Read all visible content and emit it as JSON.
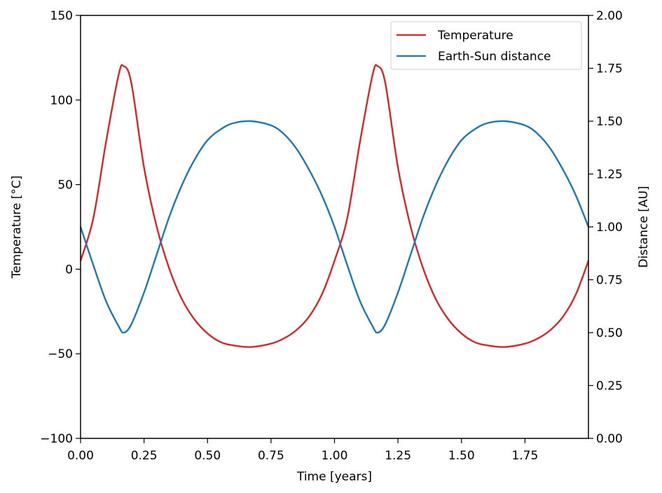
{
  "chart_data": {
    "type": "line",
    "title": "",
    "xlabel": "Time [years]",
    "ylabel_left": "Temperature [°C]",
    "ylabel_right": "Distance [AU]",
    "xlim": [
      0,
      2
    ],
    "ylim_left": [
      -100,
      150
    ],
    "ylim_right": [
      0,
      2
    ],
    "grid": false,
    "legend_position": "top-right",
    "x_ticks": [
      "0.00",
      "0.25",
      "0.50",
      "0.75",
      "1.00",
      "1.25",
      "1.50",
      "1.75"
    ],
    "y_left_ticks": [
      "−100",
      "−50",
      "0",
      "50",
      "100",
      "150"
    ],
    "y_right_ticks": [
      "0.00",
      "0.25",
      "0.50",
      "0.75",
      "1.00",
      "1.25",
      "1.50",
      "1.75",
      "2.00"
    ],
    "x": [
      0.0,
      0.05,
      0.1,
      0.15,
      0.17,
      0.2,
      0.25,
      0.3,
      0.35,
      0.4,
      0.45,
      0.5,
      0.55,
      0.6,
      0.67,
      0.75,
      0.8,
      0.85,
      0.9,
      0.95,
      1.0,
      1.05,
      1.1,
      1.15,
      1.17,
      1.2,
      1.25,
      1.3,
      1.35,
      1.4,
      1.45,
      1.5,
      1.55,
      1.6,
      1.67,
      1.75,
      1.8,
      1.85,
      1.9,
      1.95,
      2.0
    ],
    "series": [
      {
        "name": "Temperature",
        "axis": "left",
        "color": "#d62728",
        "values": [
          5,
          30,
          75,
          115,
          120,
          110,
          60,
          25,
          0,
          -18,
          -30,
          -38,
          -43,
          -45,
          -46,
          -44,
          -41,
          -36,
          -28,
          -15,
          5,
          30,
          75,
          115,
          120,
          110,
          60,
          25,
          0,
          -18,
          -30,
          -38,
          -43,
          -45,
          -46,
          -44,
          -41,
          -36,
          -28,
          -15,
          5
        ]
      },
      {
        "name": "Earth-Sun distance",
        "axis": "right",
        "color": "#1f77b4",
        "values": [
          1.0,
          0.82,
          0.65,
          0.53,
          0.5,
          0.54,
          0.69,
          0.87,
          1.05,
          1.2,
          1.32,
          1.41,
          1.46,
          1.49,
          1.5,
          1.48,
          1.44,
          1.37,
          1.27,
          1.15,
          1.0,
          0.82,
          0.65,
          0.53,
          0.5,
          0.54,
          0.69,
          0.87,
          1.05,
          1.2,
          1.32,
          1.41,
          1.46,
          1.49,
          1.5,
          1.48,
          1.44,
          1.37,
          1.27,
          1.15,
          1.0
        ]
      }
    ]
  }
}
